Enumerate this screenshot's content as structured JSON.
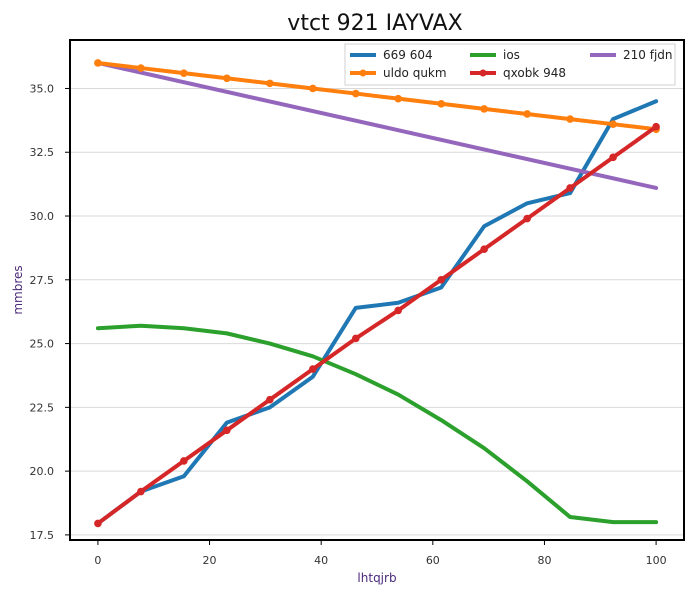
{
  "chart_data": {
    "type": "line",
    "title": "vtct 921 IAYVAX",
    "xlabel": "lhtqjrb",
    "ylabel": "mmbres",
    "xlim": [
      -5,
      105
    ],
    "ylim": [
      17.3,
      36.9
    ],
    "xticks": [
      0,
      20,
      40,
      60,
      80,
      100
    ],
    "yticks": [
      17.5,
      20.0,
      22.5,
      25.0,
      27.5,
      30.0,
      32.5,
      35.0
    ],
    "grid": "horizontal",
    "legend_position": "top-right",
    "series": [
      {
        "name": "669 604",
        "color": "#1f77b4",
        "marker": "none",
        "x": [
          0,
          7.7,
          15.4,
          23.1,
          30.8,
          38.5,
          46.2,
          53.8,
          61.5,
          69.2,
          76.9,
          84.6,
          92.3,
          100
        ],
        "y": [
          17.95,
          19.2,
          19.8,
          21.9,
          22.5,
          23.7,
          26.4,
          26.6,
          27.2,
          29.6,
          30.5,
          30.9,
          33.8,
          34.5
        ]
      },
      {
        "name": "ios",
        "color": "#2ca02c",
        "marker": "none",
        "x": [
          0,
          7.7,
          15.4,
          23.1,
          30.8,
          38.5,
          46.2,
          53.8,
          61.5,
          69.2,
          76.9,
          84.6,
          92.3,
          100
        ],
        "y": [
          25.6,
          25.7,
          25.6,
          25.4,
          25.0,
          24.5,
          23.8,
          23.0,
          22.0,
          20.9,
          19.6,
          18.2,
          18.0,
          18.0
        ]
      },
      {
        "name": "210 fjdn",
        "color": "#9467bd",
        "marker": "none",
        "x": [
          0,
          100
        ],
        "y": [
          36.0,
          31.1
        ]
      },
      {
        "name": "uldo qukm",
        "color": "#ff7f0e",
        "marker": "circle",
        "x": [
          0,
          7.7,
          15.4,
          23.1,
          30.8,
          38.5,
          46.2,
          53.8,
          61.5,
          69.2,
          76.9,
          84.6,
          92.3,
          100
        ],
        "y": [
          36.0,
          35.8,
          35.6,
          35.4,
          35.2,
          35.0,
          34.8,
          34.6,
          34.4,
          34.2,
          34.0,
          33.8,
          33.6,
          33.4
        ]
      },
      {
        "name": "qxobk 948",
        "color": "#d62728",
        "marker": "circle",
        "x": [
          0,
          7.7,
          15.4,
          23.1,
          30.8,
          38.5,
          46.2,
          53.8,
          61.5,
          69.2,
          76.9,
          84.6,
          92.3,
          100
        ],
        "y": [
          17.95,
          19.2,
          20.4,
          21.6,
          22.8,
          24.0,
          25.2,
          26.3,
          27.5,
          28.7,
          29.9,
          31.1,
          32.3,
          33.5
        ]
      }
    ],
    "legend_entries": [
      "669 604",
      "ios",
      "210 fjdn",
      "uldo qukm",
      "qxobk 948"
    ]
  }
}
